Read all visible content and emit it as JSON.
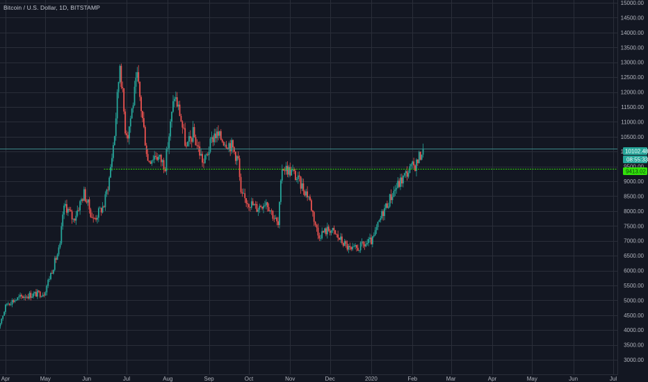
{
  "header": {
    "title": "Bitcoin / U.S. Dollar, 1D, BITSTAMP"
  },
  "colors": {
    "background": "#131722",
    "grid": "#2a2e39",
    "up": "#26a69a",
    "down": "#ef5350",
    "support_line": "#32e20a",
    "price_line": "#3c8a8a",
    "axis_text": "#b2b5be"
  },
  "chart_data": {
    "type": "candlestick",
    "symbol": "Bitcoin / U.S. Dollar",
    "interval": "1D",
    "exchange": "BITSTAMP",
    "ylim": [
      2800,
      15100
    ],
    "y_ticks": [
      3000,
      3500,
      4000,
      4500,
      5000,
      5500,
      6000,
      6500,
      7000,
      7500,
      8000,
      8500,
      9000,
      9500,
      10000,
      10500,
      11000,
      11500,
      12000,
      12500,
      13000,
      13500,
      14000,
      14500,
      15000
    ],
    "y_tick_labels": [
      "3000.00",
      "3500.00",
      "4000.00",
      "4500.00",
      "5000.00",
      "5500.00",
      "6000.00",
      "6500.00",
      "7000.00",
      "7500.00",
      "8000.00",
      "8500.00",
      "9000.00",
      "9500.00",
      "10000.00",
      "10500.00",
      "11000.00",
      "11500.00",
      "12000.00",
      "12500.00",
      "13000.00",
      "13500.00",
      "14000.00",
      "14500.00",
      "15000.00"
    ],
    "x_ticks": [
      {
        "label": "Apr",
        "date": "2019-04-01"
      },
      {
        "label": "May",
        "date": "2019-05-01"
      },
      {
        "label": "Jun",
        "date": "2019-06-01"
      },
      {
        "label": "Jul",
        "date": "2019-07-01"
      },
      {
        "label": "Aug",
        "date": "2019-08-01"
      },
      {
        "label": "Sep",
        "date": "2019-09-01"
      },
      {
        "label": "Oct",
        "date": "2019-10-01"
      },
      {
        "label": "Nov",
        "date": "2019-11-01"
      },
      {
        "label": "Dec",
        "date": "2019-12-01"
      },
      {
        "label": "2020",
        "date": "2020-01-01"
      },
      {
        "label": "Feb",
        "date": "2020-02-01"
      },
      {
        "label": "Mar",
        "date": "2020-03-01"
      },
      {
        "label": "Apr",
        "date": "2020-04-01"
      },
      {
        "label": "May",
        "date": "2020-05-01"
      },
      {
        "label": "Jun",
        "date": "2020-06-01"
      },
      {
        "label": "Jul",
        "date": "2020-07-01"
      }
    ],
    "key_prices": [
      {
        "date": "2019-03-25",
        "close": 3900
      },
      {
        "date": "2019-04-02",
        "close": 4900
      },
      {
        "date": "2019-04-15",
        "close": 5150
      },
      {
        "date": "2019-04-30",
        "close": 5250
      },
      {
        "date": "2019-05-12",
        "close": 6800
      },
      {
        "date": "2019-05-14",
        "close": 7900
      },
      {
        "date": "2019-05-16",
        "close": 8200
      },
      {
        "date": "2019-05-22",
        "close": 7700
      },
      {
        "date": "2019-05-30",
        "close": 8600
      },
      {
        "date": "2019-06-06",
        "close": 7700
      },
      {
        "date": "2019-06-14",
        "close": 8200
      },
      {
        "date": "2019-06-18",
        "close": 9100
      },
      {
        "date": "2019-06-22",
        "close": 10600
      },
      {
        "date": "2019-06-26",
        "close": 13000
      },
      {
        "date": "2019-06-30",
        "close": 10800
      },
      {
        "date": "2019-07-02",
        "close": 10600
      },
      {
        "date": "2019-07-09",
        "close": 12500
      },
      {
        "date": "2019-07-17",
        "close": 9700
      },
      {
        "date": "2019-07-23",
        "close": 9900
      },
      {
        "date": "2019-07-30",
        "close": 9550
      },
      {
        "date": "2019-08-06",
        "close": 11900
      },
      {
        "date": "2019-08-10",
        "close": 11300
      },
      {
        "date": "2019-08-15",
        "close": 10100
      },
      {
        "date": "2019-08-20",
        "close": 10600
      },
      {
        "date": "2019-08-28",
        "close": 9600
      },
      {
        "date": "2019-09-05",
        "close": 10600
      },
      {
        "date": "2019-09-18",
        "close": 10200
      },
      {
        "date": "2019-09-23",
        "close": 9700
      },
      {
        "date": "2019-09-25",
        "close": 8500
      },
      {
        "date": "2019-10-07",
        "close": 8100
      },
      {
        "date": "2019-10-14",
        "close": 8350
      },
      {
        "date": "2019-10-23",
        "close": 7500
      },
      {
        "date": "2019-10-26",
        "close": 9500
      },
      {
        "date": "2019-11-03",
        "close": 9300
      },
      {
        "date": "2019-11-15",
        "close": 8500
      },
      {
        "date": "2019-11-22",
        "close": 7200
      },
      {
        "date": "2019-12-01",
        "close": 7400
      },
      {
        "date": "2019-12-17",
        "close": 6650
      },
      {
        "date": "2020-01-02",
        "close": 7000
      },
      {
        "date": "2020-01-10",
        "close": 8000
      },
      {
        "date": "2020-01-19",
        "close": 8750
      },
      {
        "date": "2020-01-28",
        "close": 9300
      },
      {
        "date": "2020-02-04",
        "close": 9600
      },
      {
        "date": "2020-02-09",
        "close": 10102.48
      }
    ],
    "last_price": 10102.48,
    "last_price_label": "10102.48",
    "countdown_label": "08:55:33",
    "support_level": 9413.02,
    "support_label": "9413.02",
    "support_start_date": "2019-06-14",
    "grid": true
  }
}
